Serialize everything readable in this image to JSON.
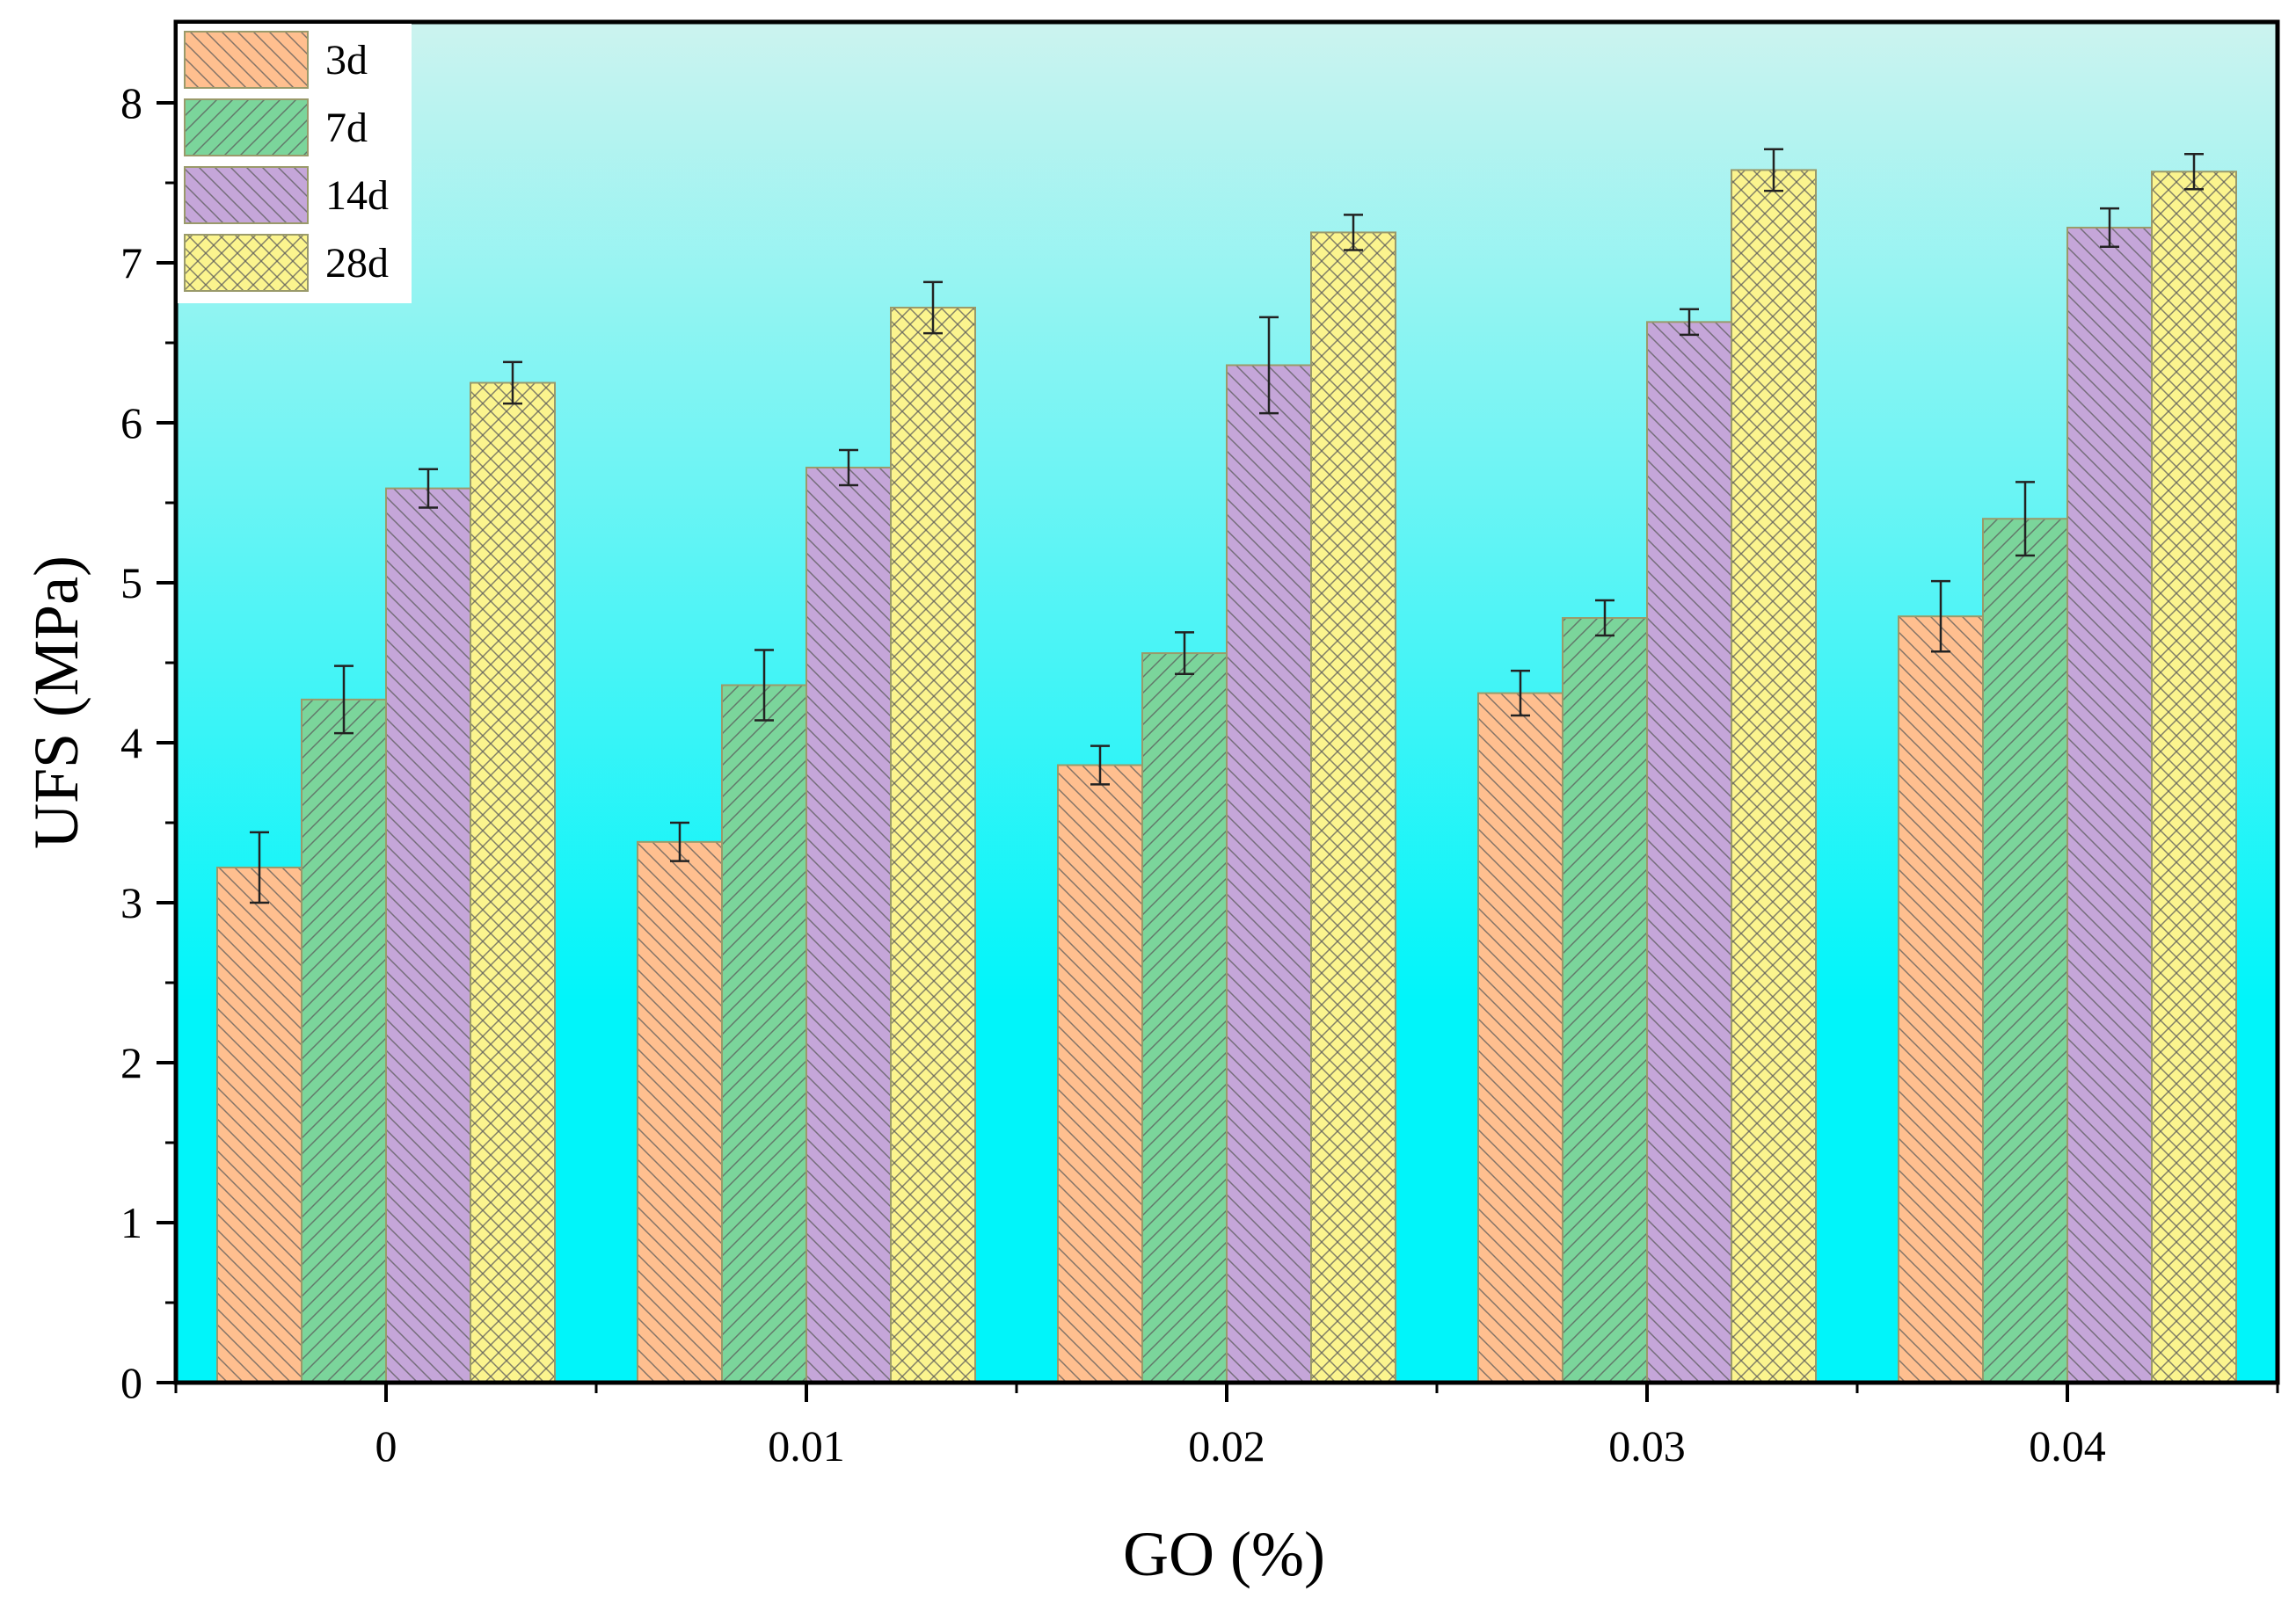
{
  "chart_data": {
    "type": "bar",
    "xlabel": "GO (%)",
    "ylabel": "UFS (MPa)",
    "ylim": [
      0,
      8.4
    ],
    "yticks": [
      "0",
      "1",
      "2",
      "3",
      "4",
      "5",
      "6",
      "7",
      "8"
    ],
    "categories": [
      "0",
      "0.01",
      "0.02",
      "0.03",
      "0.04"
    ],
    "legend_position": "top-left",
    "background_gradient": [
      "#ccf3ef",
      "#00f5fa"
    ],
    "series": [
      {
        "name": "3d",
        "color": "#ffbf8f",
        "pattern": "backslash",
        "values": [
          3.22,
          3.38,
          3.86,
          4.31,
          4.79
        ],
        "errors": [
          0.22,
          0.12,
          0.12,
          0.14,
          0.22
        ]
      },
      {
        "name": "7d",
        "color": "#7bd59b",
        "pattern": "slash",
        "values": [
          4.27,
          4.36,
          4.56,
          4.78,
          5.4
        ],
        "errors": [
          0.21,
          0.22,
          0.13,
          0.11,
          0.23
        ]
      },
      {
        "name": "14d",
        "color": "#c5a6d9",
        "pattern": "backslash",
        "values": [
          5.59,
          5.72,
          6.36,
          6.63,
          7.22
        ],
        "errors": [
          0.12,
          0.11,
          0.3,
          0.08,
          0.12
        ]
      },
      {
        "name": "28d",
        "color": "#fbf48e",
        "pattern": "cross",
        "values": [
          6.25,
          6.72,
          7.19,
          7.58,
          7.57
        ],
        "errors": [
          0.13,
          0.16,
          0.11,
          0.13,
          0.11
        ]
      }
    ]
  }
}
